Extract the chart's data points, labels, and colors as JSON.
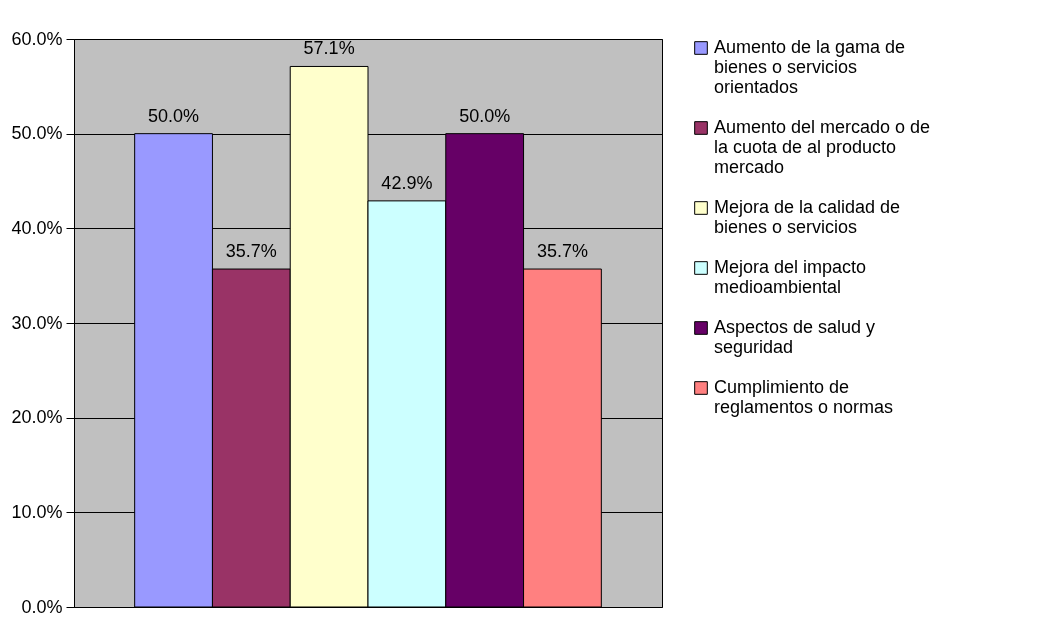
{
  "chart_data": {
    "type": "bar",
    "categories": [
      null
    ],
    "series": [
      {
        "name": "Aumento de la gama de bienes o servicios orientados",
        "color": "#9999ff",
        "values": [
          50.0
        ],
        "value_labels": [
          "50.0%"
        ]
      },
      {
        "name": "Aumento del mercado o de la cuota de al producto mercado",
        "color": "#993366",
        "values": [
          35.7
        ],
        "value_labels": [
          "35.7%"
        ]
      },
      {
        "name": "Mejora de la calidad de bienes o servicios",
        "color": "#ffffcc",
        "values": [
          57.1
        ],
        "value_labels": [
          "57.1%"
        ]
      },
      {
        "name": "Mejora del impacto medioambiental",
        "color": "#ccffff",
        "values": [
          42.9
        ],
        "value_labels": [
          "42.9%"
        ]
      },
      {
        "name": "Aspectos de salud y seguridad",
        "color": "#660066",
        "values": [
          50.0
        ],
        "value_labels": [
          "50.0%"
        ]
      },
      {
        "name": "Cumplimiento de reglamentos o normas",
        "color": "#ff8080",
        "values": [
          35.7
        ],
        "value_labels": [
          "35.7%"
        ]
      }
    ],
    "ylim": [
      0,
      60
    ],
    "yticks": [
      {
        "value": 0,
        "label": "0.0%"
      },
      {
        "value": 10,
        "label": "10.0%"
      },
      {
        "value": 20,
        "label": "20.0%"
      },
      {
        "value": 30,
        "label": "30.0%"
      },
      {
        "value": 40,
        "label": "40.0%"
      },
      {
        "value": 50,
        "label": "50.0%"
      },
      {
        "value": 60,
        "label": "60.0%"
      }
    ],
    "grid": "y",
    "legend": "right",
    "tick_labels": "y"
  }
}
